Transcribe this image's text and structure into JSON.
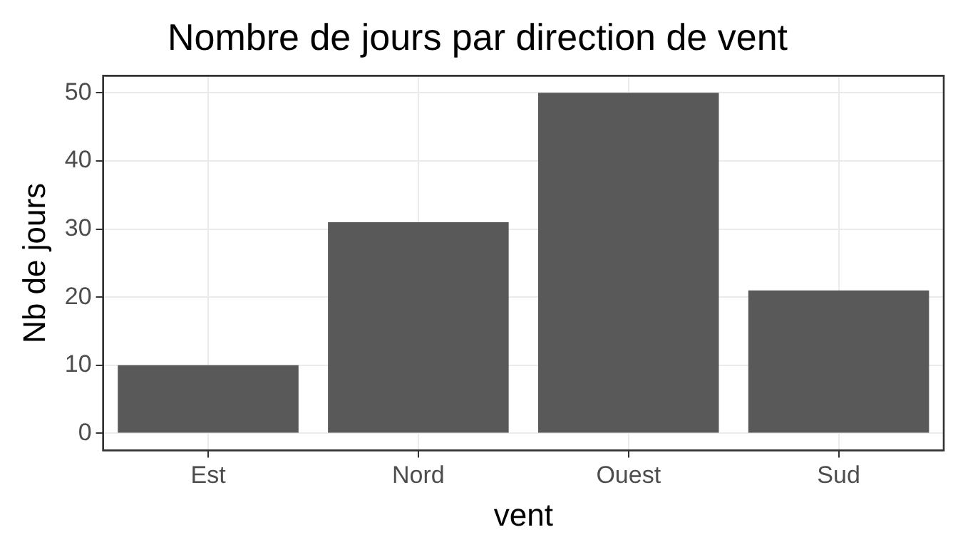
{
  "chart_data": {
    "type": "bar",
    "title": "Nombre de jours par direction de vent",
    "xlabel": "vent",
    "ylabel": "Nb de jours",
    "categories": [
      "Est",
      "Nord",
      "Ouest",
      "Sud"
    ],
    "values": [
      10,
      31,
      50,
      21
    ],
    "color": "#595959",
    "ylim": [
      -2.5,
      52.5
    ],
    "yticks": [
      0,
      10,
      20,
      30,
      40,
      50
    ],
    "grid": true,
    "legend": false
  }
}
